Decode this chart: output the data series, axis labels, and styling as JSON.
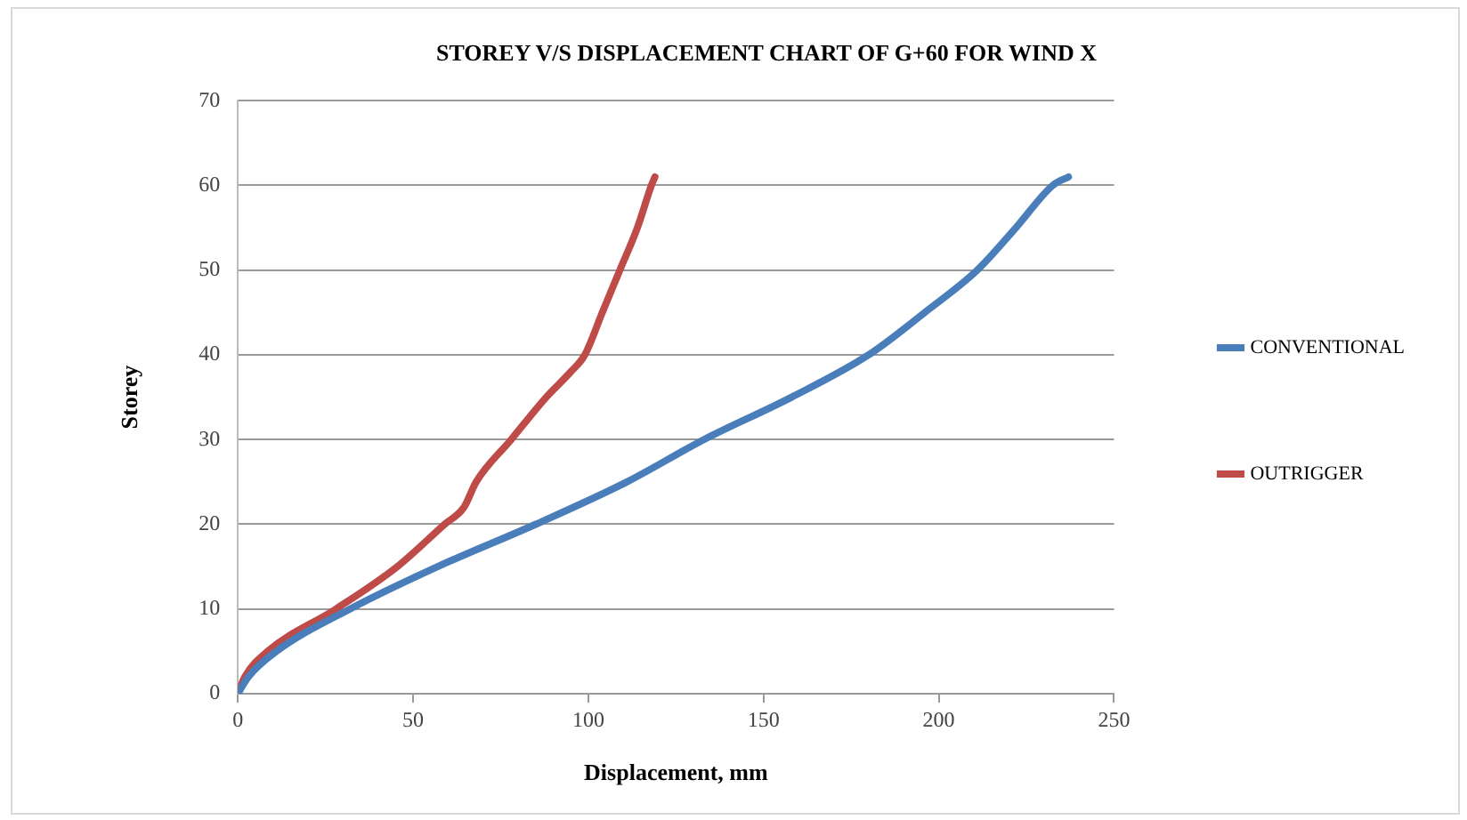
{
  "chart_data": {
    "type": "line",
    "title": "STOREY V/S DISPLACEMENT CHART OF G+60 FOR WIND X",
    "xlabel": "Displacement, mm",
    "ylabel": "Storey",
    "xlim": [
      0,
      250
    ],
    "xticks": [
      0,
      50,
      100,
      150,
      200,
      250
    ],
    "ylim": [
      0,
      70
    ],
    "yticks": [
      0,
      10,
      20,
      30,
      40,
      50,
      60,
      70
    ],
    "grid": "y",
    "legend": "right",
    "marker": "none",
    "line_style": "solid",
    "series": [
      {
        "name": "CONVENTIONAL",
        "color": "#4a7ebb",
        "x": [
          0,
          3,
          11,
          32,
          57,
          85,
          111,
          133,
          158,
          180,
          196,
          211,
          222,
          232.5,
          237
        ],
        "values": [
          0,
          2,
          5,
          10,
          15,
          20,
          25,
          30,
          35,
          40,
          45,
          50,
          55,
          60,
          61
        ]
      },
      {
        "name": "OUTRIGGER",
        "color": "#be4b48",
        "x": [
          0,
          2,
          8.5,
          28,
          45.5,
          59,
          64.5,
          68,
          78,
          88,
          95,
          99,
          104,
          109,
          114,
          118,
          119
        ],
        "values": [
          0,
          2,
          5,
          10,
          15,
          20,
          22,
          25,
          30,
          35,
          38,
          40,
          45,
          50,
          55,
          60,
          61
        ]
      }
    ]
  }
}
